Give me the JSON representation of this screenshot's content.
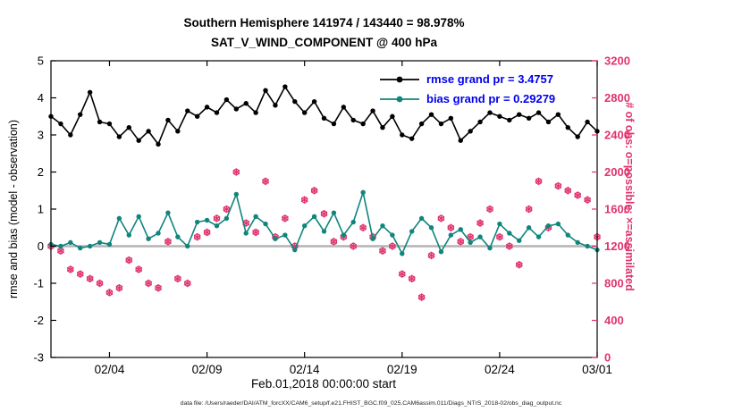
{
  "colors": {
    "rmse": "#000000",
    "bias": "#0F857C",
    "obs": "#E0336E",
    "legend_text": "#0000EE",
    "zero_line": "#B3B3B3",
    "axis": "#000000"
  },
  "chart_data": {
    "type": "line",
    "title": "Southern Hemisphere 141974 / 143440 = 98.978%",
    "subtitle": "SAT_V_WIND_COMPONENT @ 400 hPa",
    "xlabel": "Feb.01,2018 00:00:00 start",
    "ylabel_left": "rmse and bias (model - observation)",
    "ylabel_right": "# of obs: o=possible; ×=assimilated",
    "caption": "data file: /Users/raeder/DAI/ATM_forcXX/CAM6_setup/f.e21.FHIST_BGC.f09_025.CAM6assim.011/Diags_NTrS_2018-02/obs_diag_output.nc",
    "grid": false,
    "legend_position": "upper-right-inside",
    "x_range": [
      0,
      28
    ],
    "ylim_left": [
      -3,
      5
    ],
    "ylim_right": [
      0,
      3200
    ],
    "x_ticks": [
      {
        "t": 3,
        "label": "02/04"
      },
      {
        "t": 8,
        "label": "02/09"
      },
      {
        "t": 13,
        "label": "02/14"
      },
      {
        "t": 18,
        "label": "02/19"
      },
      {
        "t": 23,
        "label": "02/24"
      },
      {
        "t": 28,
        "label": "03/01"
      }
    ],
    "y_ticks_left": [
      5,
      4,
      3,
      2,
      1,
      0,
      -1,
      -2,
      -3
    ],
    "y_ticks_right": [
      3200,
      2800,
      2400,
      2000,
      1600,
      1200,
      800,
      400,
      0
    ],
    "t_unit": "days since Feb.01,2018 00:00, 12-hourly bins",
    "t": [
      0,
      0.5,
      1,
      1.5,
      2,
      2.5,
      3,
      3.5,
      4,
      4.5,
      5,
      5.5,
      6,
      6.5,
      7,
      7.5,
      8,
      8.5,
      9,
      9.5,
      10,
      10.5,
      11,
      11.5,
      12,
      12.5,
      13,
      13.5,
      14,
      14.5,
      15,
      15.5,
      16,
      16.5,
      17,
      17.5,
      18,
      18.5,
      19,
      19.5,
      20,
      20.5,
      21,
      21.5,
      22,
      22.5,
      23,
      23.5,
      24,
      24.5,
      25,
      25.5,
      26,
      26.5,
      27,
      27.5,
      28
    ],
    "series": [
      {
        "name": "rmse",
        "legend": "rmse grand pr = 3.4757",
        "axis": "left",
        "marker": "dot-line",
        "color": "#000000",
        "values": [
          3.5,
          3.3,
          3.0,
          3.55,
          4.15,
          3.35,
          3.3,
          2.95,
          3.2,
          2.85,
          3.1,
          2.75,
          3.4,
          3.1,
          3.65,
          3.5,
          3.75,
          3.6,
          3.95,
          3.7,
          3.85,
          3.6,
          4.2,
          3.8,
          4.3,
          3.9,
          3.6,
          3.9,
          3.45,
          3.3,
          3.75,
          3.4,
          3.3,
          3.65,
          3.2,
          3.5,
          3.0,
          2.9,
          3.3,
          3.55,
          3.3,
          3.45,
          2.85,
          3.1,
          3.35,
          3.6,
          3.5,
          3.4,
          3.55,
          3.45,
          3.6,
          3.35,
          3.55,
          3.2,
          2.95,
          3.35,
          3.1
        ]
      },
      {
        "name": "bias",
        "legend": "bias grand pr = 0.29279",
        "axis": "left",
        "marker": "dot-line",
        "color": "#0F857C",
        "values": [
          0.05,
          0.0,
          0.1,
          -0.05,
          0.0,
          0.1,
          0.05,
          0.75,
          0.3,
          0.8,
          0.2,
          0.35,
          0.9,
          0.25,
          0.0,
          0.65,
          0.7,
          0.55,
          0.75,
          1.4,
          0.35,
          0.8,
          0.6,
          0.2,
          0.3,
          -0.1,
          0.55,
          0.8,
          0.4,
          0.9,
          0.3,
          0.65,
          1.45,
          0.2,
          0.55,
          0.3,
          -0.2,
          0.4,
          0.75,
          0.5,
          -0.15,
          0.3,
          0.45,
          0.1,
          0.25,
          -0.05,
          0.6,
          0.35,
          0.15,
          0.5,
          0.25,
          0.55,
          0.6,
          0.3,
          0.1,
          0.0,
          -0.1
        ]
      },
      {
        "name": "obs-count",
        "legend_note": "o=possible; ×=assimilated (markers overlap, 98.978% assimilated)",
        "axis": "right",
        "marker": "circle-asterisk",
        "color": "#E0336E",
        "values": [
          1200,
          1150,
          950,
          900,
          850,
          800,
          700,
          750,
          1050,
          950,
          800,
          750,
          1250,
          850,
          800,
          1300,
          1350,
          1500,
          1600,
          2000,
          1450,
          1350,
          1900,
          1300,
          1500,
          1200,
          1700,
          1800,
          1550,
          1250,
          1300,
          1200,
          1400,
          1300,
          1150,
          1200,
          900,
          850,
          650,
          1100,
          1500,
          1400,
          1250,
          1300,
          1450,
          1600,
          1300,
          1200,
          1000,
          1600,
          1900,
          1400,
          1850,
          1800,
          1750,
          1700,
          1300
        ]
      }
    ]
  }
}
